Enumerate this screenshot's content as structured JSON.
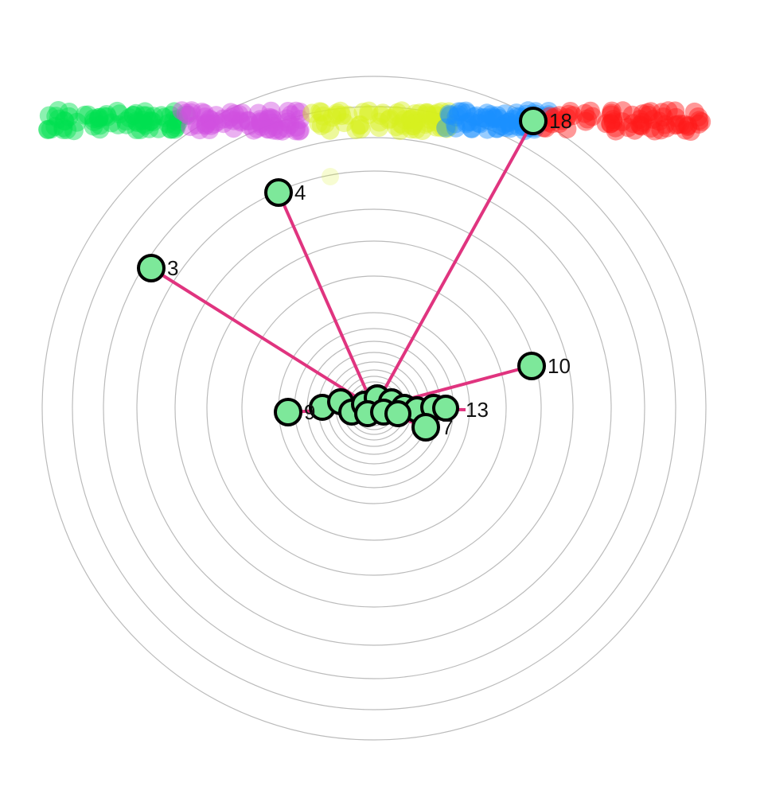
{
  "nodes": [
    {
      "label": "18"
    },
    {
      "label": "4"
    },
    {
      "label": "3"
    },
    {
      "label": "10"
    },
    {
      "label": "9"
    },
    {
      "label": "7"
    },
    {
      "label": "13"
    }
  ]
}
